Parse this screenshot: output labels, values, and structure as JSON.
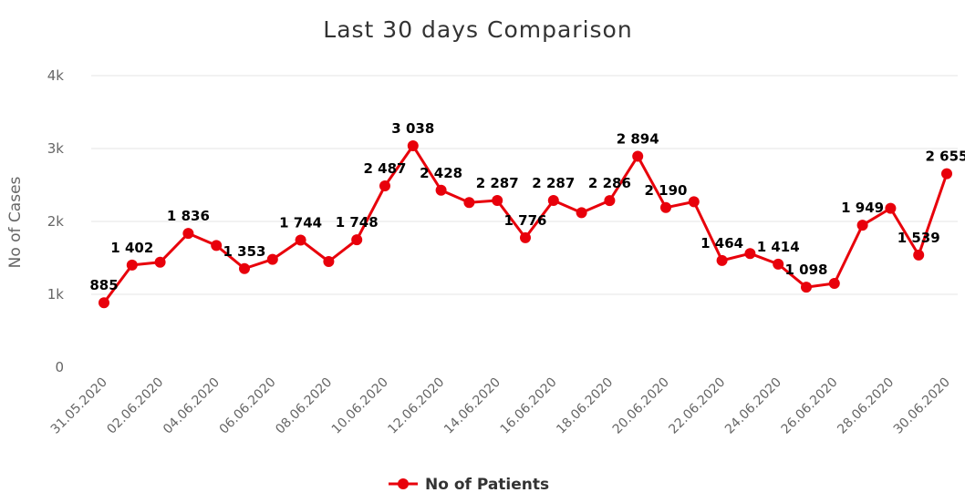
{
  "chart_data": {
    "type": "line",
    "title": "Last 30 days Comparison",
    "ylabel": "No of Cases",
    "xlabel": "",
    "ylim": [
      0,
      4000
    ],
    "y_ticks": [
      {
        "value": 0,
        "label": "0"
      },
      {
        "value": 1000,
        "label": "1k"
      },
      {
        "value": 2000,
        "label": "2k"
      },
      {
        "value": 3000,
        "label": "3k"
      },
      {
        "value": 4000,
        "label": "4k"
      }
    ],
    "grid": true,
    "legend_position": "bottom-center",
    "color": "#e8000b",
    "categories": [
      "31.05.2020",
      "01.06.2020",
      "02.06.2020",
      "03.06.2020",
      "04.06.2020",
      "05.06.2020",
      "06.06.2020",
      "07.06.2020",
      "08.06.2020",
      "09.06.2020",
      "10.06.2020",
      "11.06.2020",
      "12.06.2020",
      "13.06.2020",
      "14.06.2020",
      "15.06.2020",
      "16.06.2020",
      "17.06.2020",
      "18.06.2020",
      "19.06.2020",
      "20.06.2020",
      "21.06.2020",
      "22.06.2020",
      "23.06.2020",
      "24.06.2020",
      "25.06.2020",
      "26.06.2020",
      "27.06.2020",
      "28.06.2020",
      "29.06.2020",
      "30.06.2020"
    ],
    "x_tick_labels": [
      "31.05.2020",
      "02.06.2020",
      "04.06.2020",
      "06.06.2020",
      "08.06.2020",
      "10.06.2020",
      "12.06.2020",
      "14.06.2020",
      "16.06.2020",
      "18.06.2020",
      "20.06.2020",
      "22.06.2020",
      "24.06.2020",
      "26.06.2020",
      "28.06.2020",
      "30.06.2020"
    ],
    "series": [
      {
        "name": "No of Patients",
        "values": [
          885,
          1402,
          1440,
          1836,
          1670,
          1353,
          1480,
          1744,
          1450,
          1748,
          2487,
          3038,
          2428,
          2260,
          2287,
          1776,
          2287,
          2120,
          2286,
          2894,
          2190,
          2270,
          1464,
          1560,
          1414,
          1098,
          1150,
          1949,
          2180,
          1539,
          2655
        ],
        "data_labels": [
          "885",
          "1 402",
          "",
          "1 836",
          "",
          "1 353",
          "",
          "1 744",
          "",
          "1 748",
          "2 487",
          "3 038",
          "2 428",
          "",
          "2 287",
          "1 776",
          "2 287",
          "",
          "2 286",
          "2 894",
          "2 190",
          "",
          "1 464",
          "",
          "1 414",
          "1 098",
          "",
          "1 949",
          "",
          "1 539",
          "2 655"
        ]
      }
    ]
  }
}
